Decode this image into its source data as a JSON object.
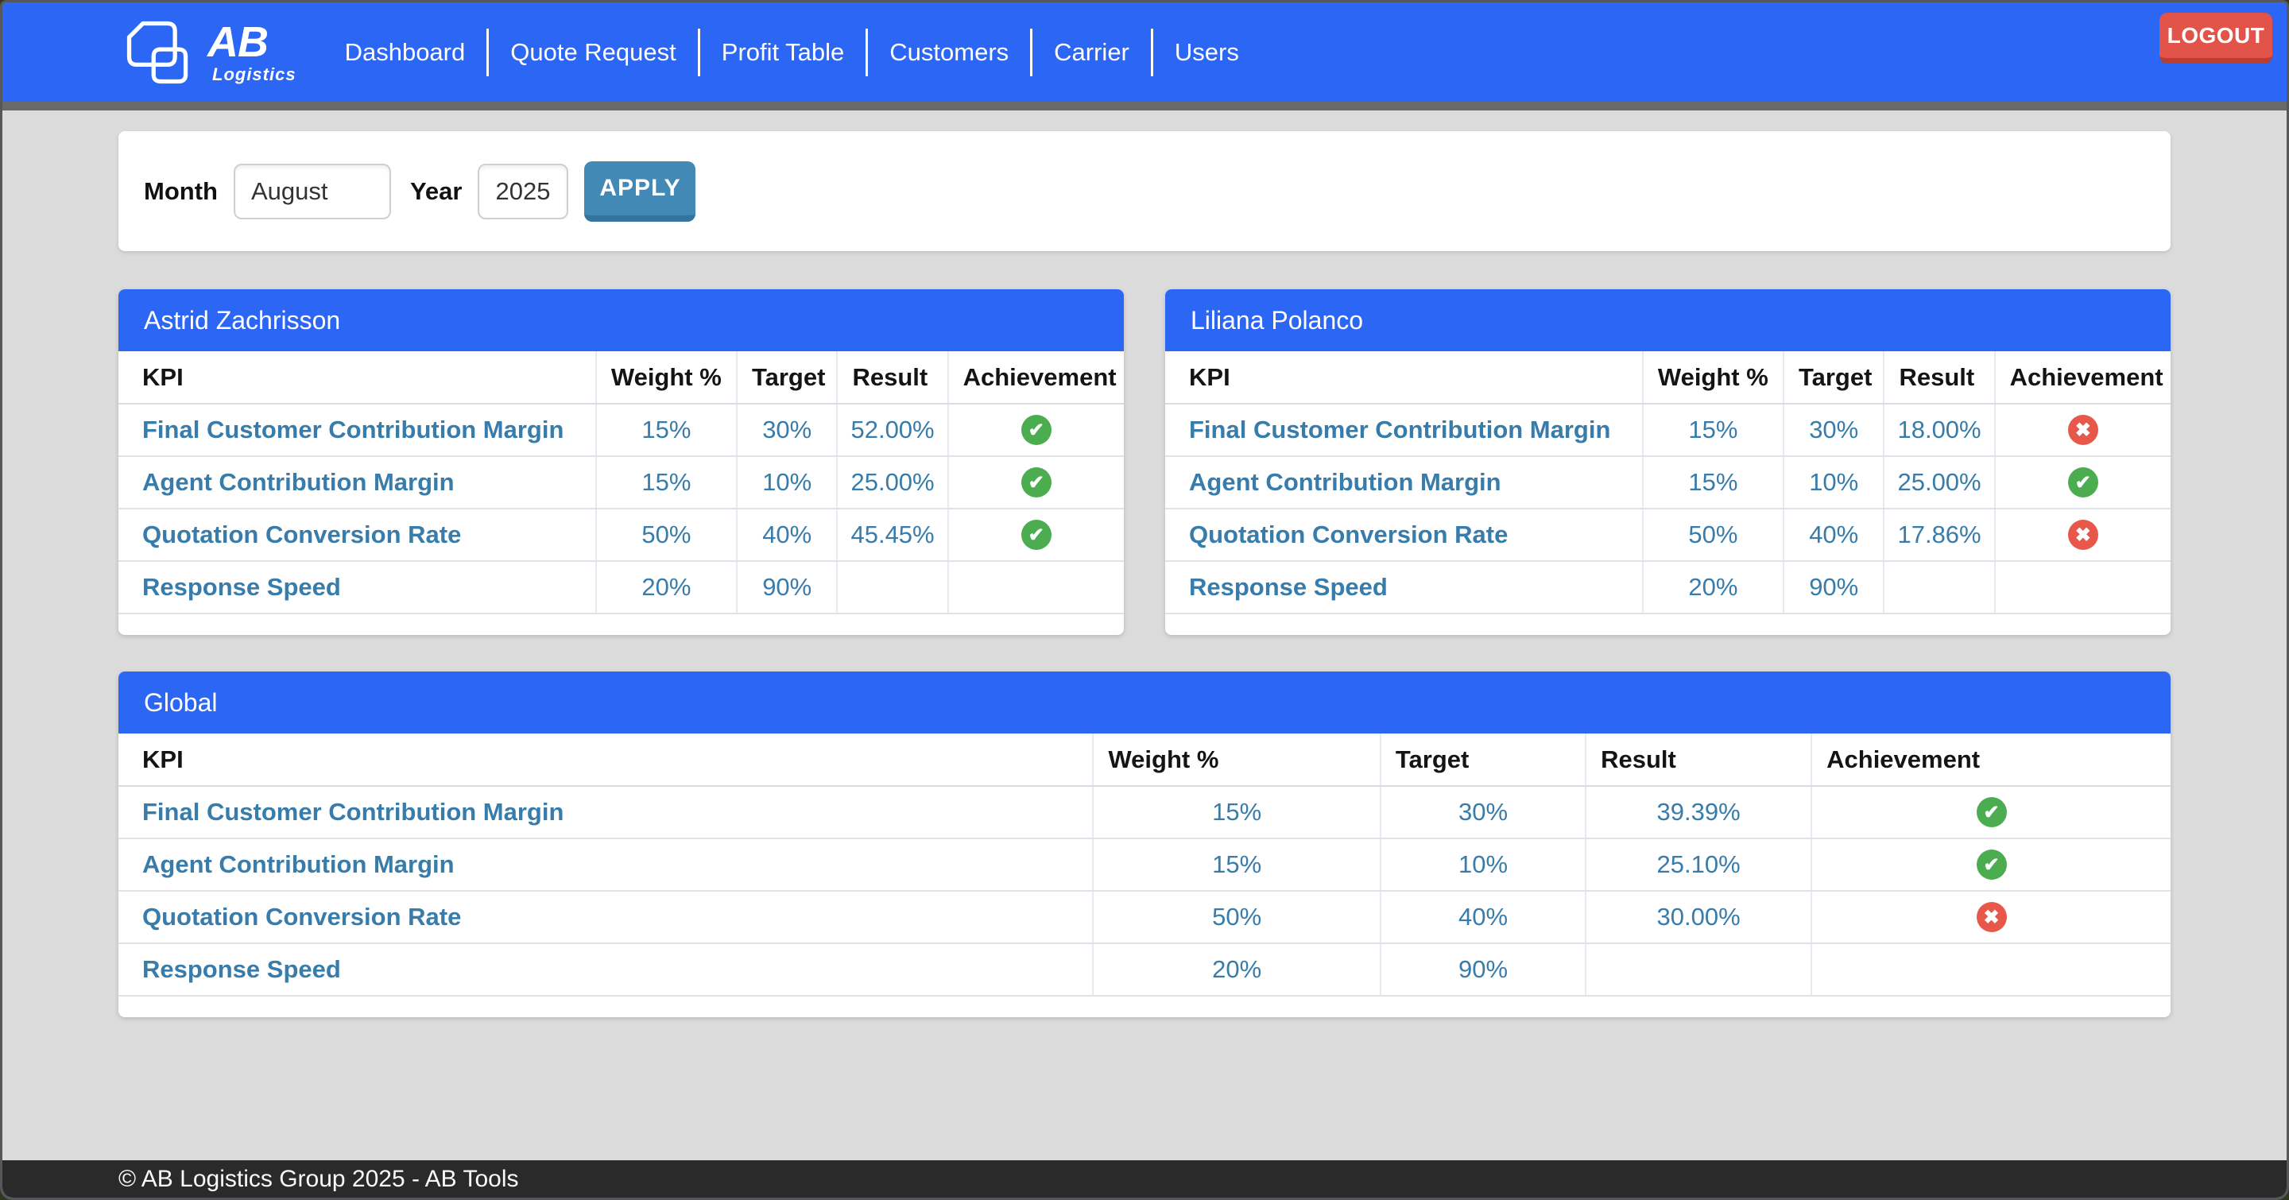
{
  "navbar": {
    "brand_name": "AB",
    "brand_subtitle": "Logistics",
    "items": [
      "Dashboard",
      "Quote Request",
      "Profit Table",
      "Customers",
      "Carrier",
      "Users"
    ],
    "logout_label": "LOGOUT"
  },
  "filters": {
    "month_label": "Month",
    "month_value": "August",
    "year_label": "Year",
    "year_value": "2025",
    "apply_label": "APPLY"
  },
  "columns": [
    "KPI",
    "Weight %",
    "Target",
    "Result",
    "Achievement"
  ],
  "tables": [
    {
      "title": "Astrid Zachrisson",
      "rows": [
        {
          "kpi": "Final Customer Contribution Margin",
          "weight": "15%",
          "target": "30%",
          "result": "52.00%",
          "achievement": "pass"
        },
        {
          "kpi": "Agent Contribution Margin",
          "weight": "15%",
          "target": "10%",
          "result": "25.00%",
          "achievement": "pass"
        },
        {
          "kpi": "Quotation Conversion Rate",
          "weight": "50%",
          "target": "40%",
          "result": "45.45%",
          "achievement": "pass"
        },
        {
          "kpi": "Response Speed",
          "weight": "20%",
          "target": "90%",
          "result": "",
          "achievement": ""
        }
      ]
    },
    {
      "title": "Liliana Polanco",
      "rows": [
        {
          "kpi": "Final Customer Contribution Margin",
          "weight": "15%",
          "target": "30%",
          "result": "18.00%",
          "achievement": "fail"
        },
        {
          "kpi": "Agent Contribution Margin",
          "weight": "15%",
          "target": "10%",
          "result": "25.00%",
          "achievement": "pass"
        },
        {
          "kpi": "Quotation Conversion Rate",
          "weight": "50%",
          "target": "40%",
          "result": "17.86%",
          "achievement": "fail"
        },
        {
          "kpi": "Response Speed",
          "weight": "20%",
          "target": "90%",
          "result": "",
          "achievement": ""
        }
      ]
    },
    {
      "title": "Global",
      "rows": [
        {
          "kpi": "Final Customer Contribution Margin",
          "weight": "15%",
          "target": "30%",
          "result": "39.39%",
          "achievement": "pass"
        },
        {
          "kpi": "Agent Contribution Margin",
          "weight": "15%",
          "target": "10%",
          "result": "25.10%",
          "achievement": "pass"
        },
        {
          "kpi": "Quotation Conversion Rate",
          "weight": "50%",
          "target": "40%",
          "result": "30.00%",
          "achievement": "fail"
        },
        {
          "kpi": "Response Speed",
          "weight": "20%",
          "target": "90%",
          "result": "",
          "achievement": ""
        }
      ]
    }
  ],
  "icons": {
    "pass": "✔",
    "fail": "✖"
  },
  "footer": {
    "text": "© AB Logistics Group 2025 - AB Tools"
  },
  "colors": {
    "primary_blue": "#2c66f4",
    "kpi_text_blue": "#377caa",
    "success_green": "#4bad4f",
    "danger_red": "#e8584a",
    "apply_button_blue": "#4289b6",
    "logout_red": "#e2544a",
    "footer_dark": "#2a2a2a",
    "body_gray": "#dbdbdb"
  }
}
